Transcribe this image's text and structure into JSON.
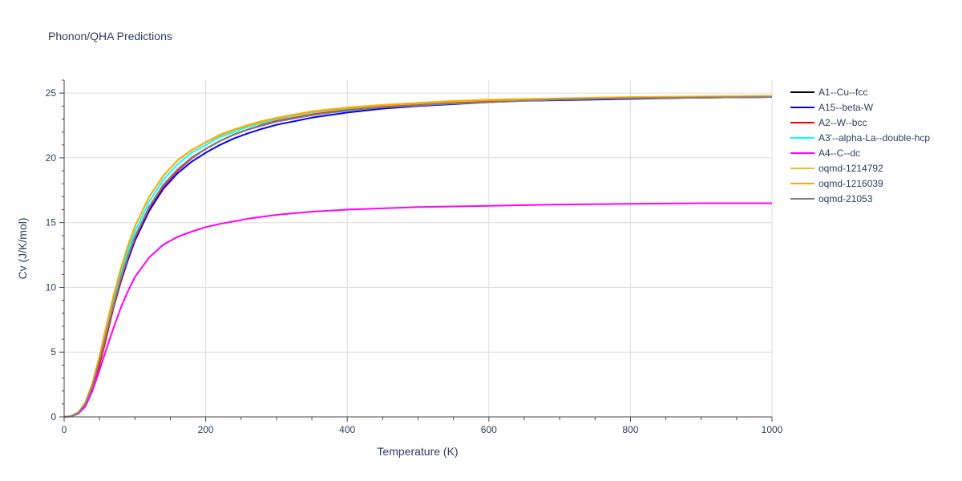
{
  "chart_data": {
    "type": "line",
    "title": "Phonon/QHA Predictions",
    "xlabel": "Temperature (K)",
    "ylabel": "Cv (J/K/mol)",
    "xlim": [
      0,
      1000
    ],
    "ylim": [
      0,
      26
    ],
    "x_ticks": [
      0,
      200,
      400,
      600,
      800,
      1000
    ],
    "y_ticks": [
      0,
      5,
      10,
      15,
      20,
      25
    ],
    "grid": true,
    "legend_position": "right",
    "x": [
      0,
      10,
      20,
      30,
      40,
      50,
      60,
      70,
      80,
      90,
      100,
      120,
      140,
      160,
      180,
      200,
      220,
      240,
      260,
      280,
      300,
      350,
      400,
      450,
      500,
      550,
      600,
      650,
      700,
      800,
      900,
      1000
    ],
    "series": [
      {
        "name": "A1--Cu--fcc",
        "color": "#000000",
        "values": [
          0,
          0.05,
          0.3,
          1.0,
          2.4,
          4.3,
          6.5,
          8.7,
          10.7,
          12.4,
          13.9,
          16.2,
          17.9,
          19.1,
          20.0,
          20.7,
          21.3,
          21.8,
          22.2,
          22.5,
          22.8,
          23.3,
          23.7,
          23.95,
          24.1,
          24.25,
          24.35,
          24.45,
          24.5,
          24.6,
          24.65,
          24.7
        ]
      },
      {
        "name": "A15--beta-W",
        "color": "#0000ff",
        "values": [
          0,
          0.05,
          0.3,
          0.95,
          2.3,
          4.1,
          6.3,
          8.5,
          10.4,
          12.1,
          13.6,
          15.9,
          17.6,
          18.8,
          19.7,
          20.4,
          21.0,
          21.5,
          21.9,
          22.25,
          22.55,
          23.1,
          23.5,
          23.8,
          24.0,
          24.15,
          24.3,
          24.4,
          24.45,
          24.55,
          24.65,
          24.7
        ]
      },
      {
        "name": "A2--W--bcc",
        "color": "#ff0000",
        "values": [
          0,
          0.04,
          0.25,
          0.85,
          2.1,
          4.0,
          6.2,
          8.5,
          10.5,
          12.3,
          13.8,
          16.1,
          17.8,
          19.0,
          19.95,
          20.7,
          21.3,
          21.8,
          22.2,
          22.55,
          22.85,
          23.35,
          23.7,
          23.95,
          24.1,
          24.25,
          24.35,
          24.45,
          24.5,
          24.6,
          24.65,
          24.7
        ]
      },
      {
        "name": "A3'--alpha-La--double-hcp",
        "color": "#00ffff",
        "values": [
          0,
          0.05,
          0.3,
          1.0,
          2.4,
          4.4,
          6.7,
          9.0,
          11.0,
          12.8,
          14.3,
          16.6,
          18.3,
          19.5,
          20.4,
          21.0,
          21.6,
          22.0,
          22.4,
          22.7,
          23.0,
          23.5,
          23.8,
          24.05,
          24.2,
          24.35,
          24.45,
          24.5,
          24.55,
          24.65,
          24.7,
          24.75
        ]
      },
      {
        "name": "A4--C--dc",
        "color": "#ff00ff",
        "values": [
          0,
          0.04,
          0.25,
          0.8,
          2.0,
          3.6,
          5.3,
          6.9,
          8.4,
          9.7,
          10.8,
          12.3,
          13.3,
          13.9,
          14.3,
          14.65,
          14.9,
          15.1,
          15.3,
          15.45,
          15.6,
          15.85,
          16.0,
          16.1,
          16.2,
          16.25,
          16.3,
          16.35,
          16.4,
          16.45,
          16.5,
          16.5
        ]
      },
      {
        "name": "oqmd-1214792",
        "color": "#e8c02a",
        "values": [
          0,
          0.06,
          0.35,
          1.1,
          2.6,
          4.7,
          7.1,
          9.4,
          11.4,
          13.2,
          14.7,
          17.0,
          18.6,
          19.8,
          20.6,
          21.2,
          21.8,
          22.2,
          22.55,
          22.85,
          23.1,
          23.6,
          23.9,
          24.1,
          24.25,
          24.4,
          24.5,
          24.55,
          24.6,
          24.7,
          24.75,
          24.8
        ]
      },
      {
        "name": "oqmd-1216039",
        "color": "#ffa500",
        "values": [
          0,
          0.06,
          0.35,
          1.1,
          2.6,
          4.7,
          7.1,
          9.4,
          11.4,
          13.2,
          14.7,
          17.0,
          18.6,
          19.8,
          20.6,
          21.2,
          21.75,
          22.15,
          22.5,
          22.8,
          23.05,
          23.55,
          23.85,
          24.05,
          24.2,
          24.35,
          24.45,
          24.5,
          24.55,
          24.65,
          24.7,
          24.75
        ]
      },
      {
        "name": "oqmd-21053",
        "color": "#808080",
        "values": [
          0,
          0.05,
          0.3,
          1.0,
          2.35,
          4.3,
          6.5,
          8.7,
          10.7,
          12.4,
          13.9,
          16.2,
          17.9,
          19.1,
          20.0,
          20.7,
          21.3,
          21.8,
          22.2,
          22.5,
          22.8,
          23.3,
          23.65,
          23.9,
          24.05,
          24.2,
          24.3,
          24.4,
          24.5,
          24.6,
          24.65,
          24.7
        ]
      }
    ]
  }
}
